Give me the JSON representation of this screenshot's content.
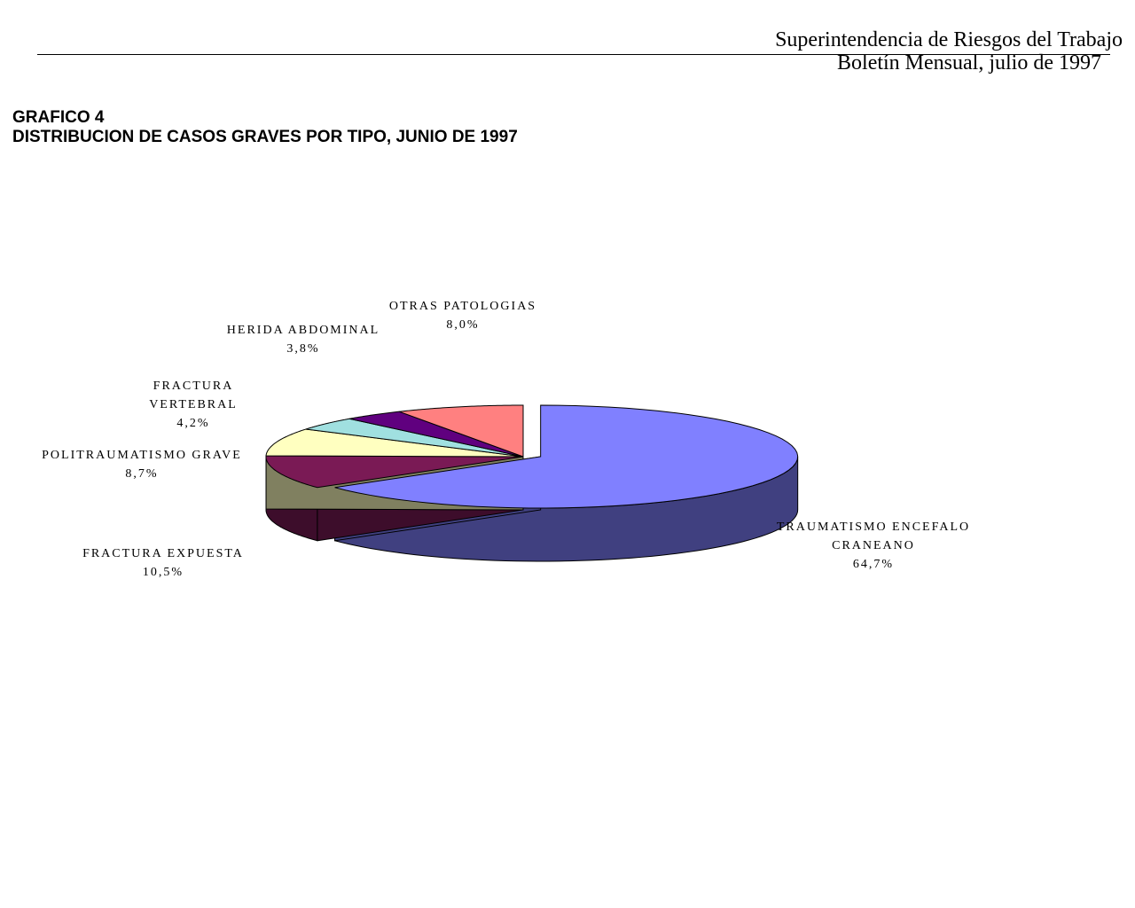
{
  "header": {
    "line1": "Superintendencia de Riesgos del Trabajo",
    "line2": "Boletín Mensual, julio de 1997"
  },
  "chart_data": {
    "type": "pie3d",
    "title": "GRAFICO 4",
    "subtitle": "DISTRIBUCION DE CASOS GRAVES POR TIPO, JUNIO DE 1997",
    "categories": [
      "TRAUMATISMO ENCEFALO CRANEANO",
      "FRACTURA EXPUESTA",
      "POLITRAUMATISMO GRAVE",
      "FRACTURA VERTEBRAL",
      "HERIDA ABDOMINAL",
      "OTRAS PATOLOGIAS"
    ],
    "values": [
      64.7,
      10.5,
      8.7,
      4.2,
      3.8,
      8.0
    ],
    "value_labels": [
      "64,7%",
      "10,5%",
      "8,7%",
      "4,2%",
      "3,8%",
      "8,0%"
    ],
    "colors": [
      "#8080ff",
      "#7a1a55",
      "#ffffc0",
      "#a0e0e0",
      "#60007f",
      "#ff8080"
    ]
  }
}
